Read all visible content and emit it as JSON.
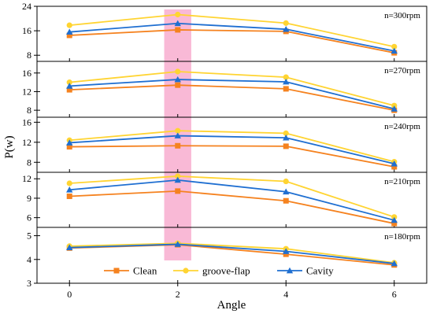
{
  "chart_data": {
    "type": "line",
    "xlabel": "Angle",
    "ylabel": "P(w)",
    "x": [
      0,
      2,
      4,
      6
    ],
    "xlim": [
      -0.6,
      6.6
    ],
    "x_ticks": [
      "0",
      "2",
      "4",
      "6"
    ],
    "highlight_x_range": [
      1.75,
      2.25
    ],
    "highlight_color": "#f9b5d4",
    "legend": {
      "placement": "bottom-center",
      "entries": [
        {
          "name": "Clean",
          "color": "#f5821f",
          "marker": "square"
        },
        {
          "name": "groove-flap",
          "color": "#ffd432",
          "marker": "circle"
        },
        {
          "name": "Cavity",
          "color": "#1f6fd1",
          "marker": "triangle"
        }
      ]
    },
    "panels": [
      {
        "label": "n=300rpm",
        "ylim": [
          6,
          24
        ],
        "y_ticks": [
          "8",
          "16",
          "24"
        ],
        "series": [
          {
            "name": "Clean",
            "values": [
              14.5,
              16.3,
              15.8,
              8.8
            ]
          },
          {
            "name": "groove-flap",
            "values": [
              17.8,
              21.3,
              18.5,
              10.8
            ]
          },
          {
            "name": "Cavity",
            "values": [
              15.6,
              18.4,
              16.5,
              9.4
            ]
          }
        ]
      },
      {
        "label": "n=270rpm",
        "ylim": [
          6.5,
          18.5
        ],
        "y_ticks": [
          "8",
          "12",
          "16"
        ],
        "series": [
          {
            "name": "Clean",
            "values": [
              12.4,
              13.4,
              12.6,
              8.0
            ]
          },
          {
            "name": "groove-flap",
            "values": [
              14.0,
              16.3,
              15.1,
              9.0
            ]
          },
          {
            "name": "Cavity",
            "values": [
              13.2,
              14.6,
              14.1,
              8.3
            ]
          }
        ]
      },
      {
        "label": "n=240rpm",
        "ylim": [
          6,
          17
        ],
        "y_ticks": [
          "8",
          "12",
          "16"
        ],
        "series": [
          {
            "name": "Clean",
            "values": [
              11.1,
              11.3,
              11.2,
              7.1
            ]
          },
          {
            "name": "groove-flap",
            "values": [
              12.4,
              14.3,
              13.8,
              8.1
            ]
          },
          {
            "name": "Cavity",
            "values": [
              11.9,
              13.3,
              12.9,
              7.7
            ]
          }
        ]
      },
      {
        "label": "n=210rpm",
        "ylim": [
          4.5,
          13
        ],
        "y_ticks": [
          "6",
          "9",
          "12"
        ],
        "series": [
          {
            "name": "Clean",
            "values": [
              9.3,
              10.1,
              8.6,
              5.1
            ]
          },
          {
            "name": "groove-flap",
            "values": [
              11.3,
              12.4,
              11.6,
              6.1
            ]
          },
          {
            "name": "Cavity",
            "values": [
              10.3,
              11.8,
              10.0,
              5.6
            ]
          }
        ]
      },
      {
        "label": "n=180rpm",
        "ylim": [
          3,
          5.35
        ],
        "y_ticks": [
          "3",
          "4",
          "5"
        ],
        "series": [
          {
            "name": "Clean",
            "values": [
              4.48,
              4.62,
              4.22,
              3.77
            ]
          },
          {
            "name": "groove-flap",
            "values": [
              4.56,
              4.68,
              4.45,
              3.86
            ]
          },
          {
            "name": "Cavity",
            "values": [
              4.5,
              4.64,
              4.34,
              3.83
            ]
          }
        ]
      }
    ]
  }
}
